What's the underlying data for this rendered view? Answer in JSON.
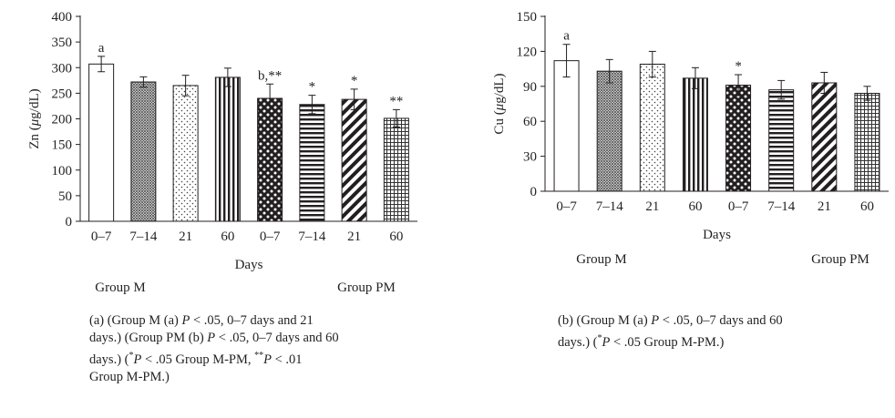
{
  "chart_data": [
    {
      "type": "bar",
      "ylabel_prefix": "Zn (",
      "ylabel_unit_mu": "μ",
      "ylabel_suffix": "g/dL)",
      "xlabel": "Days",
      "groups": [
        "Group M",
        "Group PM"
      ],
      "categories": [
        "0–7",
        "7–14",
        "21",
        "60",
        "0–7",
        "7–14",
        "21",
        "60"
      ],
      "values": [
        307,
        272,
        265,
        281,
        240,
        228,
        238,
        201
      ],
      "errors": [
        15,
        10,
        20,
        18,
        28,
        18,
        20,
        17
      ],
      "annotations": [
        "a",
        "",
        "",
        "",
        "b,**",
        "*",
        "*",
        "**"
      ],
      "patterns": [
        "white",
        "crosshatch",
        "dots",
        "vlines",
        "checker",
        "hlines",
        "diag",
        "grid"
      ],
      "ylim": [
        0,
        400
      ],
      "yticks": [
        0,
        50,
        100,
        150,
        200,
        250,
        300,
        350,
        400
      ],
      "grid": false,
      "caption_label": "(a)",
      "caption": [
        [
          "(Group M (a) ",
          "i:P",
          " < .05, 0–7 days and 21"
        ],
        [
          "days.) (Group PM (b) ",
          "i:P",
          " < .05, 0–7 days and 60"
        ],
        [
          "days.) (",
          "sup:*",
          "i:P",
          " < .05 Group M-PM, ",
          "sup:**",
          "i:P",
          " < .01"
        ],
        [
          "Group M-PM.)"
        ]
      ]
    },
    {
      "type": "bar",
      "ylabel_prefix": "Cu (",
      "ylabel_unit_mu": "μ",
      "ylabel_suffix": "g/dL)",
      "xlabel": "Days",
      "groups": [
        "Group M",
        "Group PM"
      ],
      "categories": [
        "0–7",
        "7–14",
        "21",
        "60",
        "0–7",
        "7–14",
        "21",
        "60"
      ],
      "values": [
        112,
        103,
        109,
        97,
        91,
        87,
        93,
        84
      ],
      "errors": [
        14,
        10,
        11,
        9,
        9,
        8,
        9,
        6
      ],
      "annotations": [
        "a",
        "",
        "",
        "",
        "*",
        "",
        "",
        ""
      ],
      "patterns": [
        "white",
        "crosshatch",
        "dots",
        "vlines",
        "checker",
        "hlines",
        "diag",
        "grid"
      ],
      "ylim": [
        0,
        150
      ],
      "yticks": [
        0,
        30,
        60,
        90,
        120,
        150
      ],
      "grid": false,
      "caption_label": "(b)",
      "caption": [
        [
          "(Group M (a) ",
          "i:P",
          " < .05, 0–7 days and 60"
        ],
        [
          "days.) (",
          "sup:*",
          "i:P",
          " < .05 Group M-PM.)"
        ]
      ]
    }
  ]
}
